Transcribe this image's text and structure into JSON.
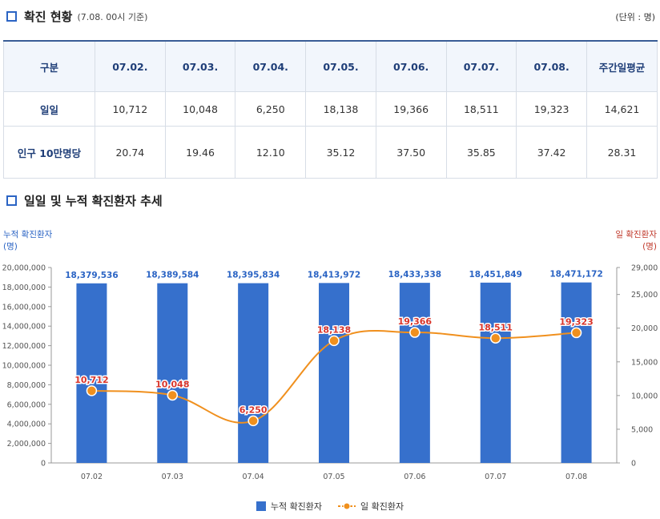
{
  "section1": {
    "title": "확진 현황",
    "subtitle": "(7.08. 00시 기준)",
    "unit": "(단위 : 명)"
  },
  "table": {
    "headers": [
      "구분",
      "07.02.",
      "07.03.",
      "07.04.",
      "07.05.",
      "07.06.",
      "07.07.",
      "07.08.",
      "주간일평균"
    ],
    "rows": [
      {
        "label": "일일",
        "values": [
          "10,712",
          "10,048",
          "6,250",
          "18,138",
          "19,366",
          "18,511",
          "19,323",
          "14,621"
        ]
      },
      {
        "label": "인구 10만명당",
        "values": [
          "20.74",
          "19.46",
          "12.10",
          "35.12",
          "37.50",
          "35.85",
          "37.42",
          "28.31"
        ]
      }
    ]
  },
  "section2": {
    "title": "일일 및 누적 확진환자 추세"
  },
  "colors": {
    "bar": "#3670cc",
    "line": "#f0901e",
    "left_axis_label": "#2b64c4",
    "right_axis_label": "#c0392b",
    "line_label": "#d9352b",
    "bar_label": "#2b64c4"
  },
  "chart_data": {
    "type": "bar+line",
    "categories": [
      "07.02",
      "07.03",
      "07.04",
      "07.05",
      "07.06",
      "07.07",
      "07.08"
    ],
    "series": [
      {
        "name": "누적 확진환자",
        "type": "bar",
        "axis": "left",
        "values": [
          18379536,
          18389584,
          18395834,
          18413972,
          18433338,
          18451849,
          18471172
        ],
        "labels": [
          "18,379,536",
          "18,389,584",
          "18,395,834",
          "18,413,972",
          "18,433,338",
          "18,451,849",
          "18,471,172"
        ]
      },
      {
        "name": "일 확진환자",
        "type": "line",
        "axis": "right",
        "values": [
          10712,
          10048,
          6250,
          18138,
          19366,
          18511,
          19323
        ],
        "labels": [
          "10,712",
          "10,048",
          "6,250",
          "18,138",
          "19,366",
          "18,511",
          "19,323"
        ]
      }
    ],
    "left_axis": {
      "label_line1": "누적 확진환자",
      "label_line2": "(명)",
      "ylim": [
        0,
        20000000
      ],
      "ticks": [
        0,
        2000000,
        4000000,
        6000000,
        8000000,
        10000000,
        12000000,
        14000000,
        16000000,
        18000000,
        20000000
      ],
      "tick_labels": [
        "0",
        "2,000,000",
        "4,000,000",
        "6,000,000",
        "8,000,000",
        "10,000,000",
        "12,000,000",
        "14,000,000",
        "16,000,000",
        "18,000,000",
        "20,000,000"
      ]
    },
    "right_axis": {
      "label_line1": "일 확진환자",
      "label_line2": "(명)",
      "ylim": [
        0,
        29000
      ],
      "ticks": [
        0,
        5000,
        10000,
        15000,
        20000,
        25000,
        29000
      ],
      "tick_labels": [
        "0",
        "5,000",
        "10,000",
        "15,000",
        "20,000",
        "25,000",
        "29,000"
      ]
    },
    "legend": [
      "누적 확진환자",
      "일 확진환자"
    ],
    "legend_position": "bottom"
  }
}
